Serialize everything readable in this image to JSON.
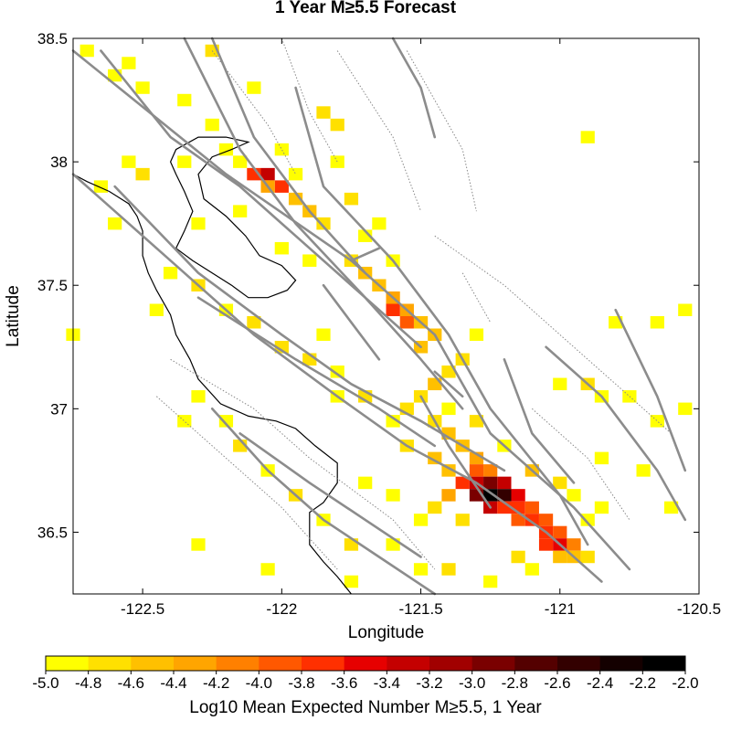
{
  "chart_data": {
    "type": "heatmap",
    "title": "1 Year M≥5.5 Forecast",
    "xlabel": "Longitude",
    "ylabel": "Latitude",
    "xlim": [
      -122.75,
      -120.5
    ],
    "ylim": [
      36.25,
      38.5
    ],
    "xticks": [
      "-122.5",
      "-122",
      "-121.5",
      "-121",
      "-120.5"
    ],
    "xtick_values": [
      -122.5,
      -122,
      -121.5,
      -121,
      -120.5
    ],
    "yticks": [
      "36.5",
      "37",
      "37.5",
      "38",
      "38.5"
    ],
    "ytick_values": [
      36.5,
      37,
      37.5,
      38,
      38.5
    ],
    "cell_size_deg": 0.05,
    "cells": [
      [
        -122.7,
        38.45,
        -4.9
      ],
      [
        -122.6,
        38.35,
        -4.9
      ],
      [
        -122.55,
        38.4,
        -4.9
      ],
      [
        -122.5,
        38.3,
        -4.9
      ],
      [
        -122.35,
        38.25,
        -4.9
      ],
      [
        -122.25,
        38.15,
        -4.9
      ],
      [
        -122.25,
        38.45,
        -4.8
      ],
      [
        -122.2,
        38.05,
        -4.9
      ],
      [
        -122.15,
        38.0,
        -4.9
      ],
      [
        -122.1,
        38.3,
        -4.9
      ],
      [
        -122.1,
        37.95,
        -3.8
      ],
      [
        -122.05,
        37.95,
        -3.3
      ],
      [
        -122.0,
        37.9,
        -3.6
      ],
      [
        -122.05,
        37.9,
        -4.3
      ],
      [
        -121.95,
        37.85,
        -4.4
      ],
      [
        -121.9,
        37.8,
        -4.6
      ],
      [
        -121.85,
        37.75,
        -4.7
      ],
      [
        -121.95,
        37.95,
        -4.9
      ],
      [
        -122.0,
        38.05,
        -4.9
      ],
      [
        -121.85,
        38.2,
        -4.8
      ],
      [
        -121.8,
        38.15,
        -4.8
      ],
      [
        -121.8,
        38.0,
        -4.9
      ],
      [
        -121.7,
        37.7,
        -4.9
      ],
      [
        -121.75,
        37.6,
        -4.7
      ],
      [
        -121.7,
        37.55,
        -4.6
      ],
      [
        -121.65,
        37.5,
        -4.5
      ],
      [
        -121.6,
        37.45,
        -4.3
      ],
      [
        -121.55,
        37.4,
        -4.2
      ],
      [
        -121.5,
        37.35,
        -4.4
      ],
      [
        -121.6,
        37.4,
        -3.8
      ],
      [
        -121.55,
        37.35,
        -4.0
      ],
      [
        -121.45,
        37.3,
        -4.5
      ],
      [
        -121.5,
        37.25,
        -4.6
      ],
      [
        -121.85,
        37.3,
        -4.9
      ],
      [
        -121.3,
        37.3,
        -4.9
      ],
      [
        -121.35,
        37.2,
        -4.8
      ],
      [
        -121.4,
        37.15,
        -4.7
      ],
      [
        -121.45,
        37.1,
        -4.6
      ],
      [
        -121.5,
        37.05,
        -4.7
      ],
      [
        -121.55,
        37.0,
        -4.8
      ],
      [
        -121.6,
        36.95,
        -4.9
      ],
      [
        -121.45,
        36.95,
        -4.7
      ],
      [
        -121.4,
        36.9,
        -4.6
      ],
      [
        -121.35,
        36.85,
        -4.4
      ],
      [
        -121.3,
        36.8,
        -4.2
      ],
      [
        -121.3,
        36.75,
        -3.9
      ],
      [
        -121.25,
        36.75,
        -4.1
      ],
      [
        -121.35,
        36.7,
        -3.7
      ],
      [
        -121.3,
        36.7,
        -3.3
      ],
      [
        -121.25,
        36.7,
        -3.0
      ],
      [
        -121.2,
        36.7,
        -3.4
      ],
      [
        -121.3,
        36.65,
        -2.9
      ],
      [
        -121.25,
        36.65,
        -2.1
      ],
      [
        -121.2,
        36.65,
        -2.5
      ],
      [
        -121.15,
        36.65,
        -3.5
      ],
      [
        -121.25,
        36.6,
        -3.4
      ],
      [
        -121.2,
        36.6,
        -3.6
      ],
      [
        -121.15,
        36.6,
        -3.7
      ],
      [
        -121.1,
        36.6,
        -4.0
      ],
      [
        -121.15,
        36.55,
        -4.0
      ],
      [
        -121.1,
        36.55,
        -3.8
      ],
      [
        -121.05,
        36.55,
        -4.0
      ],
      [
        -121.05,
        36.5,
        -3.8
      ],
      [
        -121.0,
        36.5,
        -3.9
      ],
      [
        -121.05,
        36.45,
        -3.6
      ],
      [
        -121.0,
        36.45,
        -3.5
      ],
      [
        -120.95,
        36.45,
        -4.1
      ],
      [
        -120.95,
        36.4,
        -4.5
      ],
      [
        -121.0,
        36.4,
        -4.6
      ],
      [
        -120.9,
        36.4,
        -4.8
      ],
      [
        -121.4,
        36.75,
        -4.5
      ],
      [
        -121.45,
        36.8,
        -4.6
      ],
      [
        -121.4,
        36.65,
        -4.3
      ],
      [
        -121.45,
        36.6,
        -4.7
      ],
      [
        -121.35,
        36.55,
        -4.8
      ],
      [
        -121.5,
        36.55,
        -4.9
      ],
      [
        -121.1,
        36.75,
        -4.6
      ],
      [
        -121.0,
        36.7,
        -4.7
      ],
      [
        -120.95,
        36.65,
        -4.9
      ],
      [
        -120.9,
        36.55,
        -4.9
      ],
      [
        -120.85,
        36.6,
        -4.9
      ],
      [
        -121.15,
        36.4,
        -4.8
      ],
      [
        -121.1,
        36.35,
        -4.9
      ],
      [
        -121.25,
        36.3,
        -4.9
      ],
      [
        -122.4,
        37.55,
        -4.9
      ],
      [
        -122.3,
        37.5,
        -4.8
      ],
      [
        -122.2,
        37.4,
        -4.9
      ],
      [
        -122.1,
        37.35,
        -4.8
      ],
      [
        -122.0,
        37.25,
        -4.7
      ],
      [
        -121.9,
        37.2,
        -4.8
      ],
      [
        -121.8,
        37.15,
        -4.9
      ],
      [
        -121.7,
        37.05,
        -4.8
      ],
      [
        -121.8,
        37.05,
        -4.9
      ],
      [
        -122.3,
        37.05,
        -4.9
      ],
      [
        -122.2,
        36.95,
        -4.9
      ],
      [
        -122.15,
        36.85,
        -4.8
      ],
      [
        -122.05,
        36.75,
        -4.9
      ],
      [
        -121.95,
        36.65,
        -4.8
      ],
      [
        -121.85,
        36.55,
        -4.9
      ],
      [
        -121.75,
        36.45,
        -4.8
      ],
      [
        -121.6,
        36.45,
        -4.9
      ],
      [
        -121.5,
        36.35,
        -4.9
      ],
      [
        -121.4,
        36.35,
        -4.8
      ],
      [
        -122.3,
        36.45,
        -4.9
      ],
      [
        -122.05,
        36.35,
        -4.9
      ],
      [
        -121.75,
        36.3,
        -4.9
      ],
      [
        -122.75,
        37.3,
        -4.9
      ],
      [
        -122.35,
        36.95,
        -4.9
      ],
      [
        -122.6,
        37.75,
        -4.9
      ],
      [
        -122.65,
        37.9,
        -4.9
      ],
      [
        -122.5,
        37.95,
        -4.8
      ],
      [
        -122.55,
        38.0,
        -4.9
      ],
      [
        -122.35,
        38.0,
        -4.9
      ],
      [
        -120.9,
        38.1,
        -4.9
      ],
      [
        -120.8,
        37.35,
        -4.9
      ],
      [
        -120.65,
        37.35,
        -4.9
      ],
      [
        -120.55,
        37.4,
        -4.9
      ],
      [
        -121.0,
        37.1,
        -4.9
      ],
      [
        -120.9,
        37.1,
        -4.8
      ],
      [
        -120.85,
        37.05,
        -4.9
      ],
      [
        -120.75,
        37.05,
        -4.9
      ],
      [
        -120.65,
        36.95,
        -4.9
      ],
      [
        -120.55,
        37.0,
        -4.9
      ],
      [
        -120.85,
        36.8,
        -4.9
      ],
      [
        -120.7,
        36.75,
        -4.9
      ],
      [
        -120.6,
        36.6,
        -4.9
      ],
      [
        -121.6,
        37.6,
        -4.9
      ],
      [
        -121.65,
        37.75,
        -4.9
      ],
      [
        -121.75,
        37.85,
        -4.8
      ],
      [
        -122.0,
        37.65,
        -4.9
      ],
      [
        -121.9,
        37.6,
        -4.9
      ],
      [
        -122.15,
        37.8,
        -4.9
      ],
      [
        -122.3,
        37.75,
        -4.9
      ],
      [
        -122.45,
        37.4,
        -4.9
      ],
      [
        -121.4,
        37.0,
        -4.9
      ],
      [
        -121.3,
        36.95,
        -4.8
      ],
      [
        -121.2,
        36.85,
        -4.9
      ],
      [
        -121.55,
        36.85,
        -4.8
      ],
      [
        -121.6,
        36.65,
        -4.9
      ],
      [
        -121.7,
        36.7,
        -4.9
      ]
    ],
    "faults_gray": [
      [
        [
          -122.75,
          38.45
        ],
        [
          -122.2,
          37.95
        ],
        [
          -121.75,
          37.6
        ],
        [
          -121.45,
          37.3
        ],
        [
          -121.25,
          36.9
        ],
        [
          -120.95,
          36.6
        ],
        [
          -120.75,
          36.35
        ]
      ],
      [
        [
          -122.65,
          38.45
        ],
        [
          -122.4,
          38.1
        ],
        [
          -122.15,
          37.9
        ],
        [
          -121.95,
          37.7
        ],
        [
          -121.7,
          37.45
        ],
        [
          -121.5,
          37.2
        ],
        [
          -121.35,
          37.0
        ]
      ],
      [
        [
          -122.35,
          38.5
        ],
        [
          -122.15,
          38.05
        ],
        [
          -121.95,
          37.75
        ],
        [
          -121.7,
          37.45
        ],
        [
          -121.5,
          37.25
        ]
      ],
      [
        [
          -122.25,
          38.5
        ],
        [
          -122.1,
          38.1
        ],
        [
          -121.9,
          37.8
        ],
        [
          -121.7,
          37.55
        ]
      ],
      [
        [
          -121.95,
          38.3
        ],
        [
          -121.85,
          37.9
        ],
        [
          -121.6,
          37.6
        ],
        [
          -121.4,
          37.3
        ],
        [
          -121.25,
          37.0
        ],
        [
          -121.0,
          36.65
        ],
        [
          -120.9,
          36.45
        ]
      ],
      [
        [
          -122.75,
          37.95
        ],
        [
          -122.4,
          37.6
        ],
        [
          -122.1,
          37.3
        ],
        [
          -121.8,
          37.05
        ],
        [
          -121.55,
          36.85
        ],
        [
          -121.3,
          36.7
        ],
        [
          -121.05,
          36.5
        ],
        [
          -120.85,
          36.3
        ]
      ],
      [
        [
          -122.6,
          37.9
        ],
        [
          -122.3,
          37.55
        ],
        [
          -122.0,
          37.3
        ],
        [
          -121.75,
          37.1
        ],
        [
          -121.5,
          36.95
        ],
        [
          -121.2,
          36.75
        ]
      ],
      [
        [
          -122.3,
          37.45
        ],
        [
          -121.95,
          37.2
        ],
        [
          -121.65,
          37.0
        ],
        [
          -121.45,
          36.85
        ]
      ],
      [
        [
          -122.25,
          37.0
        ],
        [
          -122.05,
          36.75
        ],
        [
          -121.85,
          36.55
        ],
        [
          -121.65,
          36.4
        ],
        [
          -121.45,
          36.25
        ]
      ],
      [
        [
          -122.15,
          36.9
        ],
        [
          -121.9,
          36.7
        ],
        [
          -121.7,
          36.55
        ],
        [
          -121.5,
          36.4
        ]
      ],
      [
        [
          -121.5,
          37.05
        ],
        [
          -121.4,
          36.85
        ],
        [
          -121.25,
          36.6
        ]
      ],
      [
        [
          -121.2,
          37.2
        ],
        [
          -121.1,
          36.9
        ],
        [
          -120.95,
          36.7
        ]
      ],
      [
        [
          -121.05,
          37.25
        ],
        [
          -120.85,
          37.05
        ],
        [
          -120.65,
          36.75
        ],
        [
          -120.55,
          36.55
        ]
      ],
      [
        [
          -120.8,
          37.4
        ],
        [
          -120.65,
          37.05
        ],
        [
          -120.55,
          36.75
        ]
      ],
      [
        [
          -121.6,
          38.5
        ],
        [
          -121.5,
          38.3
        ],
        [
          -121.45,
          38.1
        ]
      ],
      [
        [
          -121.85,
          37.5
        ],
        [
          -121.75,
          37.35
        ],
        [
          -121.65,
          37.2
        ]
      ],
      [
        [
          -121.75,
          37.6
        ],
        [
          -121.65,
          37.65
        ]
      ],
      [
        [
          -121.45,
          37.15
        ],
        [
          -121.35,
          37.05
        ]
      ]
    ],
    "faults_dotted": [
      [
        [
          -122.25,
          38.45
        ],
        [
          -122.05,
          38.15
        ],
        [
          -121.95,
          37.95
        ]
      ],
      [
        [
          -122.0,
          38.5
        ],
        [
          -121.9,
          38.2
        ],
        [
          -121.8,
          38.0
        ]
      ],
      [
        [
          -121.8,
          38.45
        ],
        [
          -121.6,
          38.1
        ],
        [
          -121.5,
          37.8
        ]
      ],
      [
        [
          -121.55,
          38.45
        ],
        [
          -121.35,
          38.05
        ],
        [
          -121.3,
          37.8
        ]
      ],
      [
        [
          -121.45,
          37.7
        ],
        [
          -121.2,
          37.5
        ],
        [
          -121.0,
          37.3
        ],
        [
          -120.8,
          37.1
        ],
        [
          -120.6,
          36.9
        ]
      ],
      [
        [
          -122.4,
          37.2
        ],
        [
          -122.1,
          37.0
        ],
        [
          -121.9,
          36.8
        ],
        [
          -121.6,
          36.55
        ],
        [
          -121.45,
          36.35
        ]
      ],
      [
        [
          -122.45,
          37.05
        ],
        [
          -122.25,
          36.85
        ],
        [
          -122.0,
          36.6
        ],
        [
          -121.8,
          36.35
        ]
      ],
      [
        [
          -121.1,
          37.0
        ],
        [
          -120.9,
          36.8
        ],
        [
          -120.75,
          36.55
        ]
      ],
      [
        [
          -121.35,
          37.55
        ],
        [
          -121.25,
          37.35
        ]
      ]
    ],
    "coastline": [
      [
        [
          -122.75,
          37.95
        ],
        [
          -122.7,
          37.92
        ],
        [
          -122.62,
          37.88
        ],
        [
          -122.55,
          37.83
        ],
        [
          -122.52,
          37.78
        ],
        [
          -122.5,
          37.72
        ],
        [
          -122.5,
          37.62
        ],
        [
          -122.48,
          37.55
        ],
        [
          -122.45,
          37.48
        ],
        [
          -122.4,
          37.38
        ],
        [
          -122.38,
          37.3
        ],
        [
          -122.33,
          37.2
        ],
        [
          -122.3,
          37.12
        ],
        [
          -122.22,
          37.02
        ],
        [
          -122.12,
          36.97
        ],
        [
          -122.02,
          36.95
        ],
        [
          -121.95,
          36.92
        ],
        [
          -121.88,
          36.85
        ],
        [
          -121.8,
          36.78
        ],
        [
          -121.8,
          36.7
        ],
        [
          -121.85,
          36.62
        ],
        [
          -121.9,
          36.58
        ],
        [
          -121.9,
          36.5
        ],
        [
          -121.9,
          36.45
        ],
        [
          -121.85,
          36.38
        ],
        [
          -121.8,
          36.32
        ],
        [
          -121.75,
          36.25
        ]
      ],
      [
        [
          -122.38,
          37.95
        ],
        [
          -122.35,
          37.88
        ],
        [
          -122.32,
          37.8
        ],
        [
          -122.35,
          37.72
        ],
        [
          -122.38,
          37.65
        ],
        [
          -122.32,
          37.6
        ],
        [
          -122.25,
          37.55
        ],
        [
          -122.18,
          37.5
        ],
        [
          -122.12,
          37.45
        ],
        [
          -122.05,
          37.45
        ],
        [
          -121.98,
          37.48
        ],
        [
          -121.95,
          37.52
        ],
        [
          -122.0,
          37.58
        ],
        [
          -122.08,
          37.62
        ],
        [
          -122.13,
          37.7
        ],
        [
          -122.2,
          37.78
        ],
        [
          -122.28,
          37.85
        ],
        [
          -122.3,
          37.95
        ],
        [
          -122.25,
          38.02
        ],
        [
          -122.18,
          38.05
        ],
        [
          -122.12,
          38.08
        ],
        [
          -122.2,
          38.1
        ],
        [
          -122.3,
          38.1
        ],
        [
          -122.38,
          38.05
        ],
        [
          -122.4,
          38.0
        ],
        [
          -122.38,
          37.95
        ]
      ]
    ],
    "colorbar": {
      "label": "Log10 Mean Expected Number M≥5.5, 1 Year",
      "ticks": [
        "-5.0",
        "-4.8",
        "-4.6",
        "-4.4",
        "-4.2",
        "-4.0",
        "-3.8",
        "-3.6",
        "-3.4",
        "-3.2",
        "-3.0",
        "-2.8",
        "-2.6",
        "-2.4",
        "-2.2",
        "-2.0"
      ],
      "colors": [
        "#ffff00",
        "#ffe000",
        "#ffc000",
        "#ffa500",
        "#ff8000",
        "#ff5800",
        "#ff3000",
        "#e60000",
        "#c40000",
        "#a10000",
        "#7a0000",
        "#540000",
        "#330000",
        "#140000",
        "#000000"
      ]
    }
  }
}
